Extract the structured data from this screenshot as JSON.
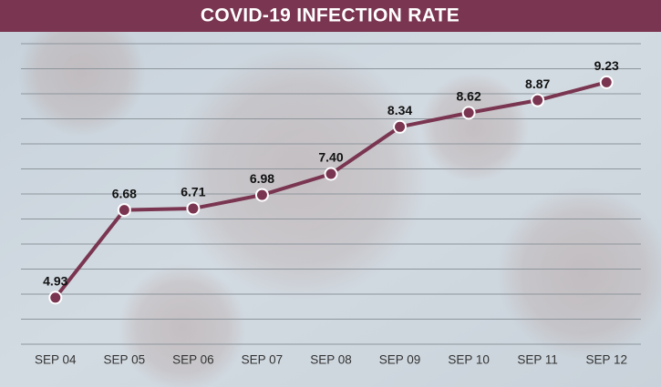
{
  "chart_data": {
    "type": "line",
    "title": "COVID-19 INFECTION RATE",
    "categories": [
      "SEP 04",
      "SEP 05",
      "SEP 06",
      "SEP 07",
      "SEP 08",
      "SEP 09",
      "SEP 10",
      "SEP 11",
      "SEP 12"
    ],
    "values": [
      4.93,
      6.68,
      6.71,
      6.98,
      7.4,
      8.34,
      8.62,
      8.87,
      9.23
    ],
    "value_labels": [
      "4.93",
      "6.68",
      "6.71",
      "6.98",
      "7.40",
      "8.34",
      "8.62",
      "8.87",
      "9.23"
    ],
    "color": "#7a3550",
    "ylim": [
      4,
      10
    ],
    "yticks": [
      4,
      4.5,
      5,
      5.5,
      6,
      6.5,
      7,
      7.5,
      8,
      8.5,
      9,
      9.5,
      10
    ],
    "grid": true
  }
}
